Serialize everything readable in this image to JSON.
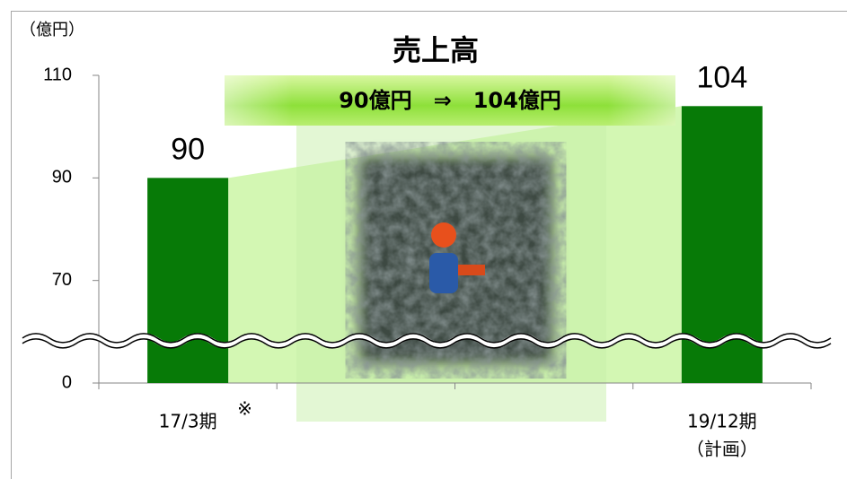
{
  "chart_data": {
    "type": "bar",
    "title": "売上高",
    "unit_label": "（億円）",
    "banner": "90億円　⇒　104億円",
    "categories": [
      "17/3期",
      null,
      null,
      "19/12期"
    ],
    "category_notes": {
      "first": "※",
      "last": "（計画）"
    },
    "values": [
      90,
      null,
      null,
      104
    ],
    "color": "#077a07",
    "ylim": [
      0,
      110
    ],
    "yticks": [
      0,
      70,
      90,
      110
    ],
    "axis_break": true
  }
}
